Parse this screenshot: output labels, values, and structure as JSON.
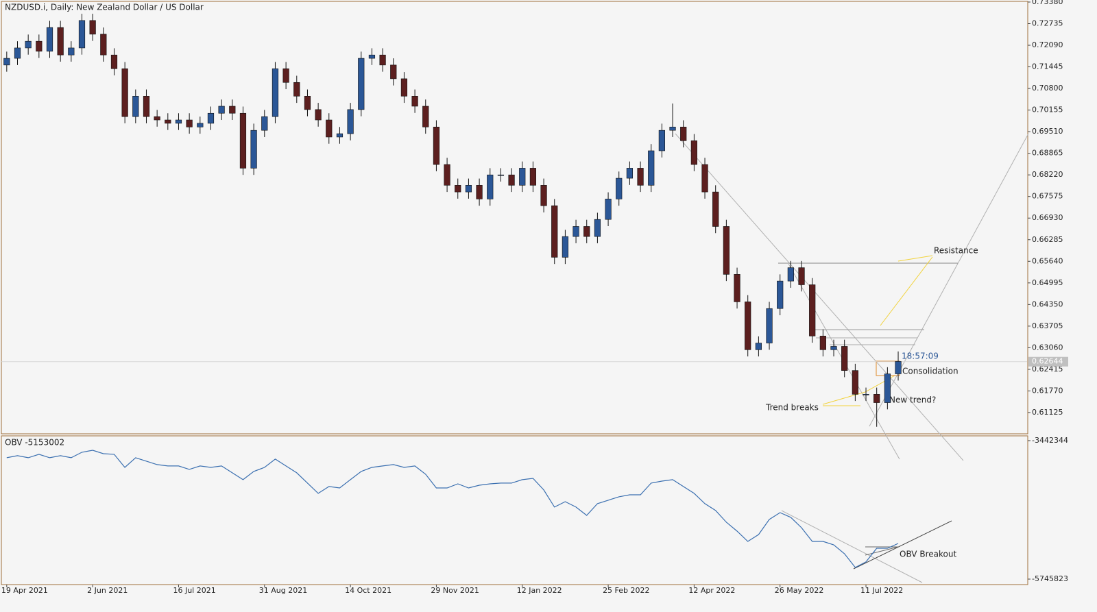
{
  "chart_data": [
    {
      "type": "candlestick",
      "title": "NZDUSD.i, Daily:  New Zealand Dollar / US Dollar",
      "bull_color": "#2b5797",
      "bear_color": "#5c1f1f",
      "wick_color": "#111111",
      "xlim": [
        -0.5,
        95
      ],
      "xticks": [
        {
          "value": 0,
          "label": "19 Apr 2021"
        },
        {
          "value": 8,
          "label": "2 Jun 2021"
        },
        {
          "value": 16,
          "label": "16 Jul 2021"
        },
        {
          "value": 24,
          "label": "31 Aug 2021"
        },
        {
          "value": 32,
          "label": "14 Oct 2021"
        },
        {
          "value": 40,
          "label": "29 Nov 2021"
        },
        {
          "value": 48,
          "label": "12 Jan 2022"
        },
        {
          "value": 56,
          "label": "25 Feb 2022"
        },
        {
          "value": 64,
          "label": "12 Apr 2022"
        },
        {
          "value": 72,
          "label": "26 May 2022"
        },
        {
          "value": 80,
          "label": "11 Jul 2022"
        }
      ],
      "ylim": [
        0.6049,
        0.734
      ],
      "yticks": [
        {
          "value": 0.7338,
          "label": "0.73380"
        },
        0.72735,
        {
          "value": 0.7209,
          "label": "0.72090"
        },
        0.71445,
        {
          "value": 0.708,
          "label": "0.70800"
        },
        0.70155,
        {
          "value": 0.6951,
          "label": "0.69510"
        },
        0.68865,
        {
          "value": 0.6822,
          "label": "0.68220"
        },
        0.67575,
        {
          "value": 0.6693,
          "label": "0.66930"
        },
        0.66285,
        {
          "value": 0.6564,
          "label": "0.65640"
        },
        0.64995,
        {
          "value": 0.6435,
          "label": "0.64350"
        },
        0.63705,
        {
          "value": 0.6306,
          "label": "0.63060"
        },
        0.62415,
        {
          "value": 0.6177,
          "label": "0.61770"
        },
        0.61125
      ],
      "current_price": 0.62644,
      "timer": "18:57:09",
      "annotations": [
        "Resistance",
        "Consolidation",
        "New trend?",
        "Trend breaks"
      ],
      "open": [
        0.715,
        0.717,
        0.7201,
        0.7221,
        0.7191,
        0.7262,
        0.718,
        0.7201,
        0.7283,
        0.7242,
        0.718,
        0.7139,
        0.6996,
        0.7057,
        0.6996,
        0.6986,
        0.6976,
        0.6986,
        0.6965,
        0.6976,
        0.7006,
        0.7027,
        0.7006,
        0.6842,
        0.6955,
        0.6996,
        0.7139,
        0.7098,
        0.7057,
        0.7017,
        0.6986,
        0.6935,
        0.6945,
        0.7017,
        0.717,
        0.718,
        0.715,
        0.7109,
        0.7057,
        0.7027,
        0.6965,
        0.6853,
        0.6791,
        0.6771,
        0.6791,
        0.675,
        0.6822,
        0.6822,
        0.6791,
        0.6842,
        0.6791,
        0.673,
        0.6576,
        0.6638,
        0.6668,
        0.6638,
        0.6689,
        0.675,
        0.6812,
        0.6842,
        0.6791,
        0.6894,
        0.6955,
        0.6965,
        0.6924,
        0.6853,
        0.6771,
        0.6668,
        0.6525,
        0.6443,
        0.63,
        0.632,
        0.6423,
        0.6505,
        0.6545,
        0.6494,
        0.6341,
        0.63,
        0.631,
        0.6238,
        0.6167,
        0.6167,
        0.6142,
        0.6228
      ],
      "high": [
        0.719,
        0.7221,
        0.7241,
        0.7241,
        0.7282,
        0.7282,
        0.7221,
        0.7303,
        0.7303,
        0.7262,
        0.72,
        0.7159,
        0.7077,
        0.7077,
        0.7016,
        0.7006,
        0.7006,
        0.7006,
        0.6996,
        0.7026,
        0.7047,
        0.7047,
        0.7026,
        0.6975,
        0.7016,
        0.7159,
        0.7159,
        0.7118,
        0.7077,
        0.7037,
        0.7006,
        0.6965,
        0.7037,
        0.719,
        0.72,
        0.72,
        0.717,
        0.7129,
        0.7077,
        0.7047,
        0.6985,
        0.6873,
        0.6811,
        0.6811,
        0.6811,
        0.6842,
        0.6842,
        0.6842,
        0.6862,
        0.6862,
        0.6811,
        0.675,
        0.6658,
        0.6688,
        0.6688,
        0.6709,
        0.677,
        0.6832,
        0.6862,
        0.6862,
        0.6914,
        0.6975,
        0.7035,
        0.6985,
        0.6944,
        0.6873,
        0.6791,
        0.6688,
        0.6545,
        0.6463,
        0.634,
        0.6443,
        0.6525,
        0.6565,
        0.6565,
        0.6514,
        0.6361,
        0.633,
        0.633,
        0.6258,
        0.6187,
        0.6187,
        0.6248,
        0.6295
      ],
      "low": [
        0.713,
        0.715,
        0.7181,
        0.7171,
        0.7171,
        0.716,
        0.716,
        0.7181,
        0.7222,
        0.716,
        0.7119,
        0.6976,
        0.6976,
        0.6976,
        0.6966,
        0.6956,
        0.6956,
        0.6945,
        0.6945,
        0.6956,
        0.6986,
        0.6986,
        0.6822,
        0.6822,
        0.6935,
        0.6976,
        0.7078,
        0.7037,
        0.6997,
        0.6966,
        0.6915,
        0.6915,
        0.6925,
        0.6997,
        0.715,
        0.713,
        0.7089,
        0.7037,
        0.7007,
        0.6945,
        0.6833,
        0.6771,
        0.6751,
        0.6751,
        0.673,
        0.673,
        0.6802,
        0.6771,
        0.6771,
        0.6771,
        0.671,
        0.6556,
        0.6556,
        0.6618,
        0.6618,
        0.6618,
        0.6669,
        0.673,
        0.6792,
        0.6771,
        0.6771,
        0.6874,
        0.6935,
        0.6904,
        0.6833,
        0.6751,
        0.6648,
        0.6505,
        0.6423,
        0.628,
        0.628,
        0.63,
        0.6403,
        0.6485,
        0.6474,
        0.6321,
        0.628,
        0.628,
        0.6218,
        0.6147,
        0.6147,
        0.607,
        0.6122,
        0.6208
      ],
      "close": [
        0.717,
        0.7201,
        0.7221,
        0.7191,
        0.7262,
        0.718,
        0.7201,
        0.7283,
        0.7242,
        0.718,
        0.7139,
        0.6996,
        0.7057,
        0.6996,
        0.6986,
        0.6976,
        0.6986,
        0.6965,
        0.6976,
        0.7006,
        0.7027,
        0.7006,
        0.6842,
        0.6955,
        0.6996,
        0.7139,
        0.7098,
        0.7057,
        0.7017,
        0.6986,
        0.6935,
        0.6945,
        0.7017,
        0.717,
        0.718,
        0.715,
        0.7109,
        0.7057,
        0.7027,
        0.6965,
        0.6853,
        0.6791,
        0.6771,
        0.6791,
        0.675,
        0.6822,
        0.6822,
        0.6791,
        0.6842,
        0.6791,
        0.673,
        0.6576,
        0.6638,
        0.6668,
        0.6638,
        0.6689,
        0.675,
        0.6812,
        0.6842,
        0.6791,
        0.6894,
        0.6955,
        0.6965,
        0.6924,
        0.6853,
        0.6771,
        0.6668,
        0.6525,
        0.6443,
        0.63,
        0.632,
        0.6423,
        0.6505,
        0.6545,
        0.6494,
        0.6341,
        0.63,
        0.631,
        0.6238,
        0.6167,
        0.6167,
        0.6142,
        0.6228,
        0.6265
      ]
    },
    {
      "type": "line",
      "title": "OBV -5153002",
      "color": "#3a6fb0",
      "xlim": [
        -0.5,
        95
      ],
      "ylim": [
        -5837000,
        -3363000
      ],
      "yticks": [
        -3442344,
        -5745823
      ],
      "annotations": [
        "OBV Breakout"
      ],
      "values": [
        -3727000,
        -3693000,
        -3727000,
        -3670000,
        -3727000,
        -3693000,
        -3727000,
        -3636000,
        -3602000,
        -3659000,
        -3670000,
        -3887000,
        -3727000,
        -3784000,
        -3841000,
        -3864000,
        -3864000,
        -3921000,
        -3864000,
        -3887000,
        -3864000,
        -3978000,
        -4092000,
        -3955000,
        -3887000,
        -3750000,
        -3864000,
        -3978000,
        -4149000,
        -4320000,
        -4206000,
        -4229000,
        -4092000,
        -3955000,
        -3887000,
        -3864000,
        -3841000,
        -3887000,
        -3864000,
        -4001000,
        -4229000,
        -4229000,
        -4161000,
        -4229000,
        -4184000,
        -4161000,
        -4149000,
        -4149000,
        -4092000,
        -4070000,
        -4263000,
        -4548000,
        -4457000,
        -4548000,
        -4685000,
        -4491000,
        -4434000,
        -4377000,
        -4343000,
        -4343000,
        -4149000,
        -4115000,
        -4092000,
        -4206000,
        -4320000,
        -4491000,
        -4605000,
        -4799000,
        -4948000,
        -5119000,
        -5005000,
        -4754000,
        -4640000,
        -4719000,
        -4891000,
        -5119000,
        -5119000,
        -5176000,
        -5324000,
        -5552000,
        -5460000,
        -5233000,
        -5233000,
        -5153002
      ]
    }
  ]
}
